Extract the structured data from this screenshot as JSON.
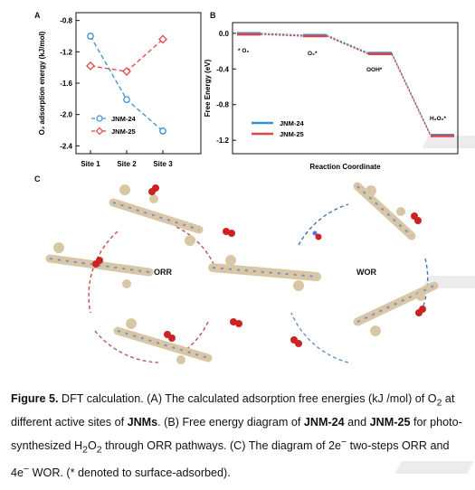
{
  "panels": {
    "a": "A",
    "b": "B",
    "c": "C"
  },
  "colors": {
    "blue": "#3a8fd6",
    "red": "#e04545",
    "purple": "#8a58a8"
  },
  "chart_data": [
    {
      "type": "line",
      "panel": "A",
      "categories": [
        "Site 1",
        "Site 2",
        "Site 3"
      ],
      "ylabel": "O₂ adsorption energy (kJ/mol)",
      "ylim": [
        -2.5,
        -0.7
      ],
      "yticks": [
        "-0.8",
        "-1.2",
        "-1.6",
        "-2.0",
        "-2.4"
      ],
      "series": [
        {
          "name": "JNM-24",
          "values": [
            -1.0,
            -1.81,
            -2.21
          ],
          "color": "#3a8fd6"
        },
        {
          "name": "JNM-25",
          "values": [
            -1.38,
            -1.45,
            -1.04
          ],
          "color": "#e04545"
        }
      ]
    },
    {
      "type": "line",
      "panel": "B",
      "xlabel": "Reaction Coordinate",
      "ylabel": "Free Energy (eV)",
      "ylim": [
        -1.35,
        0.12
      ],
      "yticks": [
        "0.0",
        "-0.4",
        "-0.8",
        "-1.2"
      ],
      "states": [
        "* O₂",
        "O₂*",
        "OOH*",
        "H₂O₂*"
      ],
      "series": [
        {
          "name": "JNM-24",
          "values": [
            0.0,
            -0.02,
            -0.22,
            -1.14
          ],
          "color": "#3a8fd6"
        },
        {
          "name": "JNM-25",
          "values": [
            0.0,
            -0.02,
            -0.22,
            -1.14
          ],
          "color": "#e04545"
        }
      ]
    }
  ],
  "illustration": {
    "orr_label": "ORR",
    "wor_label": "WOR"
  },
  "caption": {
    "p1": "Figure 5.",
    "p2": " DFT calculation. (A) The calculated adsorption free energies (kJ /mol) of O",
    "sub1": "2",
    "p3": " at different active sites of ",
    "b1": "JNMs",
    "p4": ". (B) Free energy diagram of ",
    "b2": "JNM-24",
    "p5": " and ",
    "b3": "JNM-25",
    "p6": " for photo-synthesized H",
    "sub2": "2",
    "p7": "O",
    "sub3": "2",
    "p8": " through ORR pathways. (C) The diagram of 2e",
    "sup1": "−",
    "p9": " two-steps ORR and 4e",
    "sup2": "−",
    "p10": " WOR. (* denoted to surface-adsorbed)."
  }
}
